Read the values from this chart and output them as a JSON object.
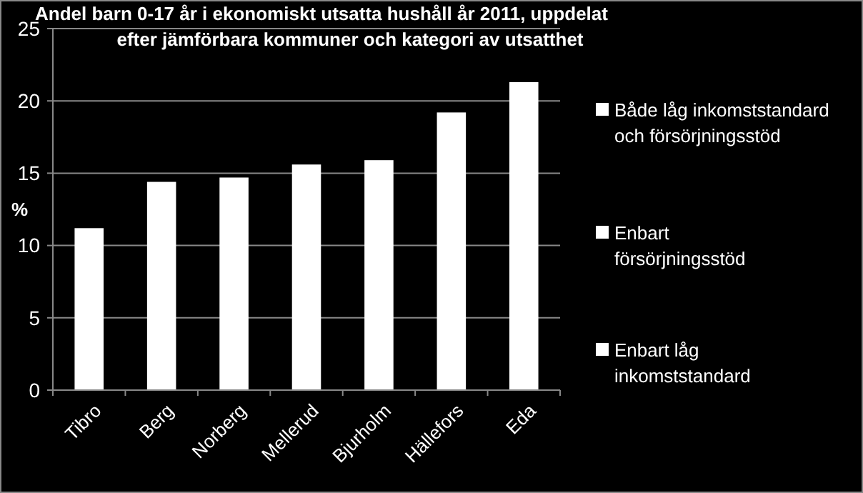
{
  "chart_data": {
    "type": "bar",
    "title": "Andel barn 0-17 år i ekonomiskt utsatta hushåll år 2011, uppdelat efter jämförbara kommuner och kategori av utsatthet",
    "ylabel": "%",
    "categories": [
      "Tibro",
      "Berg",
      "Norberg",
      "Mellerud",
      "Bjurholm",
      "Hällefors",
      "Eda"
    ],
    "series": [
      {
        "color": "#ffffff",
        "values": [
          11.2,
          14.4,
          14.7,
          15.6,
          15.9,
          19.2,
          21.3
        ]
      }
    ],
    "ylim": [
      0,
      25
    ],
    "yticks": [
      0,
      5,
      10,
      15,
      20,
      25
    ],
    "grid": "y",
    "annotations": [
      "Både låg inkomststandard och försörjningsstöd",
      "Enbart försörjningsstöd",
      "Enbart låg inkomststandard"
    ]
  }
}
